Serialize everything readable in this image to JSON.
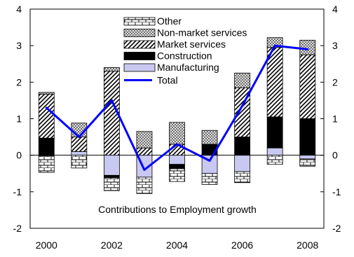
{
  "chart_data": {
    "type": "bar",
    "stacked": true,
    "annotation": "Contributions to Employment growth",
    "categories": [
      "2000",
      "2001",
      "2002",
      "2003",
      "2004",
      "2005",
      "2006",
      "2007",
      "2008"
    ],
    "x_tick_labels": [
      "2000",
      "2002",
      "2004",
      "2006",
      "2008"
    ],
    "ylim": [
      -2,
      4
    ],
    "y_ticks": [
      -2,
      -1,
      0,
      1,
      2,
      3,
      4
    ],
    "y_tick_labels": [
      "-2",
      "-1",
      "0",
      "1",
      "2",
      "3",
      "4"
    ],
    "grid": false,
    "legend_position": "top-center",
    "series": [
      {
        "name": "Manufacturing",
        "color": "#c8c8f0",
        "pattern": "solid-lavender",
        "values": [
          -0.02,
          0.1,
          -0.55,
          -0.6,
          -0.25,
          -0.5,
          -0.45,
          0.2,
          -0.1
        ]
      },
      {
        "name": "Construction",
        "color": "#000000",
        "pattern": "solid-black",
        "values": [
          0.47,
          0.0,
          -0.07,
          0.0,
          -0.12,
          0.3,
          0.5,
          0.85,
          1.0
        ]
      },
      {
        "name": "Market services",
        "color": "#000000",
        "pattern": "diagonal-stripes",
        "values": [
          1.2,
          0.4,
          2.3,
          0.2,
          0.3,
          0.0,
          1.35,
          1.9,
          1.75
        ]
      },
      {
        "name": "Non-market services",
        "color": "#000000",
        "pattern": "crosshatch",
        "values": [
          0.05,
          0.38,
          0.1,
          0.45,
          0.6,
          0.38,
          0.4,
          0.27,
          0.4
        ]
      },
      {
        "name": "Other",
        "color": "#000000",
        "pattern": "brick",
        "values": [
          -0.45,
          -0.35,
          -0.35,
          -0.45,
          -0.35,
          -0.3,
          -0.3,
          -0.25,
          -0.2
        ]
      }
    ],
    "line_series": {
      "name": "Total",
      "color": "#0000ff",
      "values": [
        1.3,
        0.5,
        1.5,
        -0.4,
        0.3,
        -0.15,
        1.35,
        3.0,
        2.9
      ]
    },
    "legend_order": [
      "Other",
      "Non-market services",
      "Market services",
      "Construction",
      "Manufacturing",
      "Total"
    ]
  }
}
